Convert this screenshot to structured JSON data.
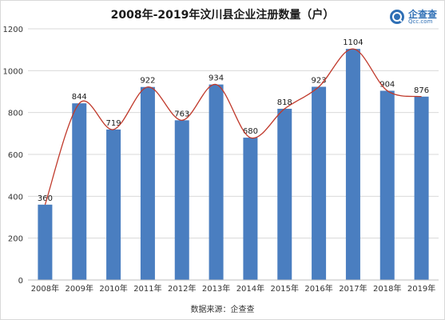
{
  "header": {
    "title": "2008年-2019年汶川县企业注册数量（户）",
    "logo_name": "企查查",
    "logo_url": "Qcc.com"
  },
  "footer": {
    "source": "数据来源：企查查"
  },
  "colors": {
    "bar": "#4a7ec0",
    "line": "#c0392b",
    "grid": "#d9d9d9",
    "brand": "#2f6fb5"
  },
  "chart_data": {
    "type": "bar",
    "categories": [
      "2008年",
      "2009年",
      "2010年",
      "2011年",
      "2012年",
      "2013年",
      "2014年",
      "2015年",
      "2016年",
      "2017年",
      "2018年",
      "2019年"
    ],
    "values": [
      360,
      844,
      719,
      922,
      763,
      934,
      680,
      818,
      923,
      1104,
      904,
      876
    ],
    "title": "2008年-2019年汶川县企业注册数量（户）",
    "xlabel": "",
    "ylabel": "",
    "ylim": [
      0,
      1200
    ],
    "yticks": [
      0,
      200,
      400,
      600,
      800,
      1000,
      1200
    ],
    "grid": true,
    "overlay_line": true,
    "data_labels": true
  }
}
